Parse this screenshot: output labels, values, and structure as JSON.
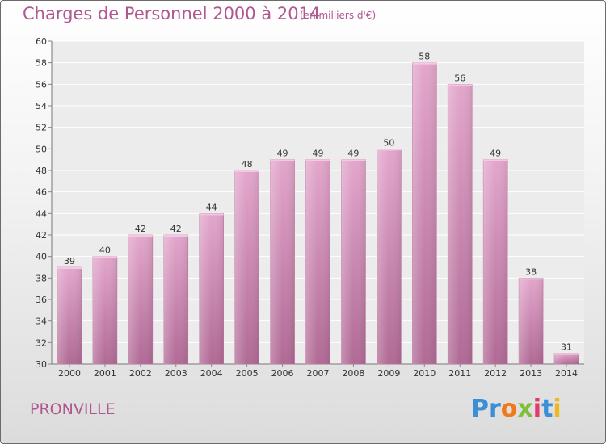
{
  "header": {
    "title": "Charges de Personnel 2000 à 2014",
    "subtitle": "(en milliers d'€)"
  },
  "footer": {
    "commune": "PRONVILLE",
    "logo": {
      "letters": [
        "P",
        "r",
        "o",
        "x",
        "i",
        "t",
        "i"
      ],
      "colors": [
        "#3a8fd6",
        "#3a8fd6",
        "#f07a1a",
        "#7fbf3a",
        "#e23a6a",
        "#3a8fd6",
        "#f0b81a"
      ]
    }
  },
  "chart_data": {
    "type": "bar",
    "categories": [
      "2000",
      "2001",
      "2002",
      "2003",
      "2004",
      "2005",
      "2006",
      "2007",
      "2008",
      "2009",
      "2010",
      "2011",
      "2012",
      "2013",
      "2014"
    ],
    "values": [
      39,
      40,
      42,
      42,
      44,
      48,
      49,
      49,
      49,
      50,
      58,
      56,
      49,
      38,
      31
    ],
    "data_labels": [
      "39",
      "40",
      "42",
      "42",
      "44",
      "48",
      "49",
      "49",
      "49",
      "50",
      "58",
      "56",
      "49",
      "38",
      "31"
    ],
    "ylim": [
      30,
      60
    ],
    "yticks": [
      30,
      32,
      34,
      36,
      38,
      40,
      42,
      44,
      46,
      48,
      50,
      52,
      54,
      56,
      58,
      60
    ],
    "grid": true,
    "bar_color": "#d98bb8"
  }
}
